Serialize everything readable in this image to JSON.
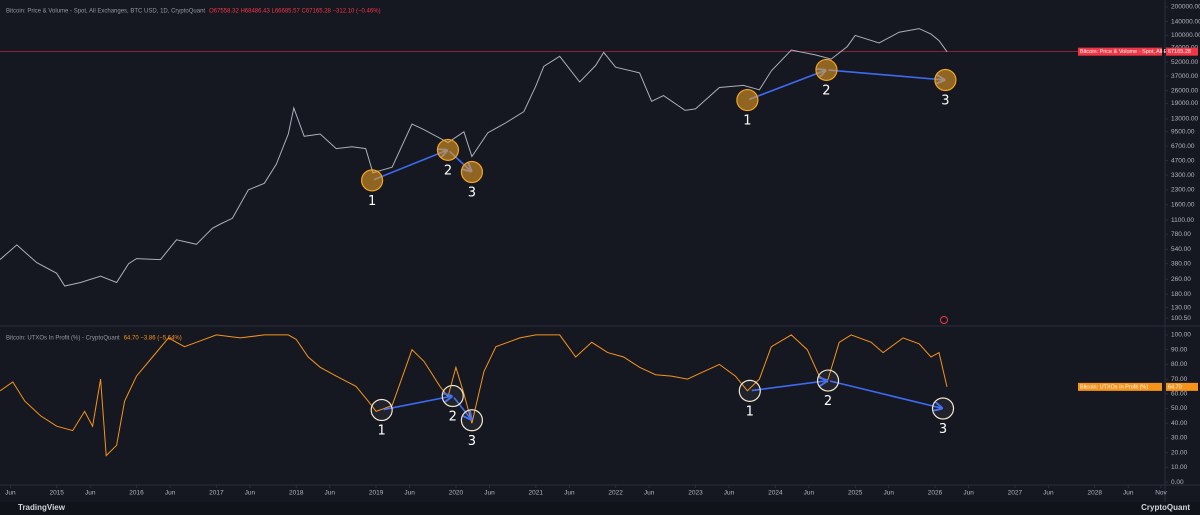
{
  "chart_data": [
    {
      "type": "line",
      "title": "Bitcoin: Price & Volume - Spot, All Exchanges, BTC USD, 1D, CryptoQuant",
      "status": "O67558.32 H68486.43 L66685.57 C67165.28 −312.10 (−0.46%)",
      "tag_name": "Bitcoin: Price & Volume - Spot, All E...",
      "last_tag": "67165.28",
      "log_scale": true,
      "grid": false,
      "color": "#a9b0bb",
      "tag_color": "#f23645",
      "xlim": [
        2014.29,
        2028.88
      ],
      "ylim": [
        85,
        237000
      ],
      "yticks": [
        {
          "value": 200000,
          "label": "200000.00"
        },
        {
          "value": 140000,
          "label": "140000.00"
        },
        {
          "value": 100000,
          "label": "100000.00"
        },
        {
          "value": 74000,
          "label": "74000.00"
        },
        {
          "value": 52000,
          "label": "52000.00"
        },
        {
          "value": 37000,
          "label": "37000.00"
        },
        {
          "value": 26000,
          "label": "26000.00"
        },
        {
          "value": 19000,
          "label": "19000.00"
        },
        {
          "value": 13000,
          "label": "13000.00"
        },
        {
          "value": 9500,
          "label": "9500.00"
        },
        {
          "value": 6700,
          "label": "6700.00"
        },
        {
          "value": 4700,
          "label": "4700.00"
        },
        {
          "value": 3300,
          "label": "3300.00"
        },
        {
          "value": 2300,
          "label": "2300.00"
        },
        {
          "value": 1600,
          "label": "1600.00"
        },
        {
          "value": 1100,
          "label": "1100.00"
        },
        {
          "value": 780,
          "label": "780.00"
        },
        {
          "value": 540,
          "label": "540.00"
        },
        {
          "value": 380,
          "label": "380.00"
        },
        {
          "value": 260,
          "label": "260.00"
        },
        {
          "value": 180,
          "label": "180.00"
        },
        {
          "value": 130,
          "label": "130.00"
        },
        {
          "value": 100.5,
          "label": "100.50"
        }
      ],
      "x": [
        2014.29,
        2014.5,
        2014.75,
        2015.0,
        2015.1,
        2015.3,
        2015.55,
        2015.75,
        2015.9,
        2016.0,
        2016.3,
        2016.5,
        2016.75,
        2016.95,
        2017.05,
        2017.2,
        2017.4,
        2017.6,
        2017.75,
        2017.9,
        2017.97,
        2018.1,
        2018.3,
        2018.5,
        2018.7,
        2018.87,
        2018.96,
        2019.2,
        2019.45,
        2019.6,
        2019.9,
        2020.1,
        2020.2,
        2020.4,
        2020.6,
        2020.85,
        2021.0,
        2021.1,
        2021.3,
        2021.55,
        2021.75,
        2021.85,
        2022.0,
        2022.3,
        2022.45,
        2022.6,
        2022.87,
        2023.0,
        2023.3,
        2023.6,
        2023.8,
        2023.95,
        2024.2,
        2024.5,
        2024.7,
        2024.9,
        2025.0,
        2025.3,
        2025.55,
        2025.8,
        2025.95,
        2026.05,
        2026.15
      ],
      "values": [
        420,
        600,
        390,
        300,
        220,
        240,
        280,
        240,
        380,
        430,
        420,
        680,
        610,
        900,
        1000,
        1150,
        2300,
        2700,
        4300,
        9000,
        17000,
        8500,
        9000,
        6300,
        6600,
        6300,
        3500,
        4000,
        11500,
        10000,
        7300,
        9500,
        5200,
        9300,
        11500,
        15500,
        29000,
        47000,
        60000,
        32000,
        48000,
        66000,
        46000,
        40000,
        20000,
        23000,
        16000,
        16600,
        28000,
        29500,
        26500,
        42000,
        70000,
        62000,
        56000,
        76000,
        100000,
        83000,
        108000,
        118000,
        103000,
        88000,
        67165.28
      ],
      "annotations": [
        [
          {
            "label": "1",
            "x": 2018.95,
            "y": 2900
          },
          {
            "label": "2",
            "x": 2019.9,
            "y": 6100
          },
          {
            "label": "3",
            "x": 2020.2,
            "y": 3560
          }
        ],
        [
          {
            "label": "1",
            "x": 2023.65,
            "y": 20600
          },
          {
            "label": "2",
            "x": 2024.64,
            "y": 43000
          },
          {
            "label": "3",
            "x": 2026.13,
            "y": 33600
          }
        ]
      ],
      "arrow_color": "#3d6bf2"
    },
    {
      "type": "line",
      "title": "Bitcoin: UTXOs In Profit (%) - CryptoQuant",
      "status": "64.70 −3.86 (−5.64%)",
      "tag_name": "Bitcoin: UTXOs In Profit (%)",
      "last_tag": "64.70",
      "log_scale": false,
      "grid": false,
      "color": "#f7931a",
      "tag_color": "#f7931a",
      "xlim": [
        2014.29,
        2028.88
      ],
      "ylim": [
        -2,
        105.4
      ],
      "yticks": [
        {
          "value": 100,
          "label": "100.00"
        },
        {
          "value": 90,
          "label": "90.00"
        },
        {
          "value": 80,
          "label": "80.00"
        },
        {
          "value": 70,
          "label": "70.00"
        },
        {
          "value": 60,
          "label": "60.00"
        },
        {
          "value": 50,
          "label": "50.00"
        },
        {
          "value": 40,
          "label": "40.00"
        },
        {
          "value": 30,
          "label": "30.00"
        },
        {
          "value": 20,
          "label": "20.00"
        },
        {
          "value": 10,
          "label": "10.00"
        },
        {
          "value": 0,
          "label": "0.00"
        }
      ],
      "xticks": [
        {
          "value": 2014.42,
          "label": "Jun"
        },
        2015,
        {
          "value": 2015.42,
          "label": "Jun"
        },
        2016,
        {
          "value": 2016.42,
          "label": "Jun"
        },
        2017,
        {
          "value": 2017.42,
          "label": "Jun"
        },
        2018,
        {
          "value": 2018.42,
          "label": "Jun"
        },
        2019,
        {
          "value": 2019.42,
          "label": "Jun"
        },
        2020,
        {
          "value": 2020.42,
          "label": "Jun"
        },
        2021,
        {
          "value": 2021.42,
          "label": "Jun"
        },
        2022,
        {
          "value": 2022.42,
          "label": "Jun"
        },
        2023,
        {
          "value": 2023.42,
          "label": "Jun"
        },
        2024,
        {
          "value": 2024.42,
          "label": "Jun"
        },
        2025,
        {
          "value": 2025.42,
          "label": "Jun"
        },
        2026,
        {
          "value": 2026.42,
          "label": "Jun"
        },
        2027,
        {
          "value": 2027.42,
          "label": "Jun"
        },
        2028,
        {
          "value": 2028.42,
          "label": "Jun"
        },
        {
          "value": 2028.83,
          "label": "Nov"
        }
      ],
      "x": [
        2014.29,
        2014.45,
        2014.6,
        2014.8,
        2015.0,
        2015.2,
        2015.35,
        2015.45,
        2015.55,
        2015.62,
        2015.75,
        2015.85,
        2016.0,
        2016.2,
        2016.4,
        2016.6,
        2016.8,
        2017.0,
        2017.3,
        2017.6,
        2017.9,
        2018.0,
        2018.15,
        2018.3,
        2018.5,
        2018.75,
        2018.9,
        2019.0,
        2019.2,
        2019.45,
        2019.6,
        2019.8,
        2019.9,
        2020.0,
        2020.1,
        2020.2,
        2020.35,
        2020.5,
        2020.8,
        2021.0,
        2021.3,
        2021.5,
        2021.7,
        2021.9,
        2022.1,
        2022.3,
        2022.5,
        2022.7,
        2022.9,
        2023.1,
        2023.3,
        2023.5,
        2023.65,
        2023.8,
        2023.95,
        2024.2,
        2024.4,
        2024.55,
        2024.65,
        2024.8,
        2024.95,
        2025.2,
        2025.35,
        2025.6,
        2025.8,
        2025.95,
        2026.05,
        2026.15
      ],
      "values": [
        62,
        68,
        55,
        45,
        38,
        35,
        48,
        38,
        70,
        18,
        25,
        55,
        72,
        85,
        98,
        92,
        96,
        100,
        98,
        100,
        100,
        97,
        85,
        78,
        72,
        65,
        55,
        48,
        52,
        90,
        82,
        65,
        58,
        78,
        60,
        40,
        75,
        92,
        98,
        100,
        100,
        85,
        95,
        88,
        85,
        78,
        73,
        72,
        70,
        75,
        80,
        72,
        62,
        70,
        92,
        100,
        90,
        72,
        68,
        95,
        100,
        95,
        88,
        98,
        94,
        85,
        88,
        64.7
      ],
      "annotations": [
        [
          {
            "label": "1",
            "x": 2019.07,
            "y": 49
          },
          {
            "label": "2",
            "x": 2019.96,
            "y": 58.5
          },
          {
            "label": "3",
            "x": 2020.2,
            "y": 42
          }
        ],
        [
          {
            "label": "1",
            "x": 2023.68,
            "y": 62
          },
          {
            "label": "2",
            "x": 2024.66,
            "y": 69
          },
          {
            "label": "3",
            "x": 2026.1,
            "y": 50
          }
        ]
      ],
      "arrow_color": "#3d6bf2"
    }
  ],
  "footer": {
    "left": "TradingView",
    "right": "CryptoQuant"
  }
}
